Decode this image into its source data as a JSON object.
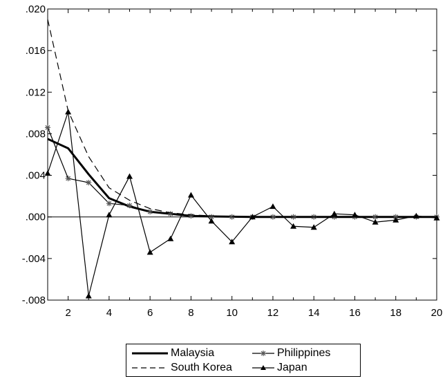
{
  "chart_data": {
    "type": "line",
    "title": "",
    "xlabel": "",
    "ylabel": "",
    "x": [
      1,
      2,
      3,
      4,
      5,
      6,
      7,
      8,
      9,
      10,
      11,
      12,
      13,
      14,
      15,
      16,
      17,
      18,
      19,
      20
    ],
    "xlim": [
      1,
      20
    ],
    "ylim": [
      -0.008,
      0.02
    ],
    "x_ticks": [
      2,
      4,
      6,
      8,
      10,
      12,
      14,
      16,
      18,
      20
    ],
    "x_tick_labels": [
      "2",
      "4",
      "6",
      "8",
      "10",
      "12",
      "14",
      "16",
      "18",
      "20"
    ],
    "y_ticks": [
      -0.008,
      -0.004,
      0.0,
      0.004,
      0.008,
      0.012,
      0.016,
      0.02
    ],
    "y_tick_labels": [
      "-.008",
      "-.004",
      ".000",
      ".004",
      ".008",
      ".012",
      ".016",
      ".020"
    ],
    "zero_line": true,
    "grid": false,
    "legend_position": "bottom-center",
    "series": [
      {
        "name": "Malaysia",
        "style": "solid-thick",
        "color": "#000000",
        "values": [
          0.0075,
          0.0066,
          0.0041,
          0.0018,
          0.001,
          0.0005,
          0.0003,
          0.0001,
          5e-05,
          2e-05,
          0.0,
          0.0,
          0.0,
          0.0,
          0.0,
          0.0,
          0.0,
          0.0,
          0.0,
          0.0
        ]
      },
      {
        "name": "Philippines",
        "style": "asterisk",
        "color": "#000000",
        "values": [
          0.0086,
          0.0037,
          0.0033,
          0.0013,
          0.0011,
          0.0005,
          0.0003,
          0.0001,
          0.0,
          0.0,
          0.0,
          0.0,
          0.0,
          0.0,
          0.0,
          0.0,
          0.0,
          0.0,
          0.0,
          0.0
        ]
      },
      {
        "name": "South Korea",
        "style": "dashed",
        "color": "#000000",
        "values": [
          0.019,
          0.0102,
          0.0058,
          0.0028,
          0.0016,
          0.0008,
          0.0004,
          0.0002,
          0.0001,
          5e-05,
          0.0,
          0.0,
          0.0,
          0.0,
          0.0,
          0.0,
          0.0,
          0.0,
          0.0,
          0.0
        ]
      },
      {
        "name": "Japan",
        "style": "triangle",
        "color": "#000000",
        "values": [
          0.0042,
          0.0101,
          -0.0076,
          0.0002,
          0.0039,
          -0.0034,
          -0.0021,
          0.0021,
          -0.0004,
          -0.0024,
          0.0,
          0.001,
          -0.0009,
          -0.001,
          0.0003,
          0.0002,
          -0.0005,
          -0.0003,
          0.0001,
          -0.0001
        ]
      }
    ]
  }
}
